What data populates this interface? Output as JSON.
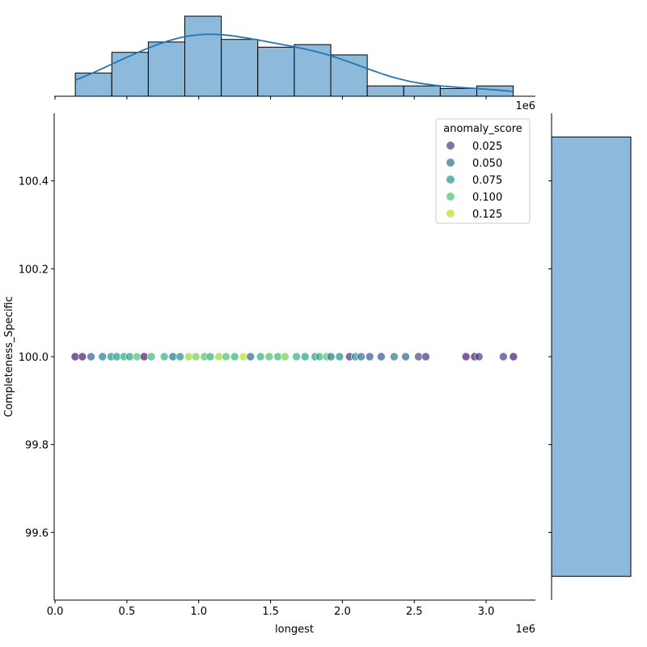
{
  "chart_data": {
    "type": "scatter",
    "xlabel": "longest",
    "ylabel": "Completeness_Specific",
    "x_offset_label": "1e6",
    "xlim": [
      -0.006,
      3.343
    ],
    "ylim": [
      99.446,
      100.554
    ],
    "x_ticks": [
      0.0,
      0.5,
      1.0,
      1.5,
      2.0,
      2.5,
      3.0
    ],
    "x_tick_labels": [
      "0.0",
      "0.5",
      "1.0",
      "1.5",
      "2.0",
      "2.5",
      "3.0"
    ],
    "y_ticks": [
      99.6,
      99.8,
      100.0,
      100.2,
      100.4
    ],
    "y_tick_labels": [
      "99.6",
      "99.8",
      "100.0",
      "100.2",
      "100.4"
    ],
    "hue": "anomaly_score",
    "colormap": "viridis",
    "hue_range": [
      0.0,
      0.14
    ],
    "legend": {
      "title": "anomaly_score",
      "position": "top-right",
      "entries": [
        "0.025",
        "0.050",
        "0.075",
        "0.100",
        "0.125"
      ],
      "values": [
        0.025,
        0.05,
        0.075,
        0.1,
        0.125
      ]
    },
    "points": {
      "x": [
        0.14,
        0.19,
        0.25,
        0.33,
        0.39,
        0.43,
        0.48,
        0.52,
        0.57,
        0.62,
        0.67,
        0.76,
        0.82,
        0.87,
        0.93,
        0.98,
        1.04,
        1.08,
        1.14,
        1.19,
        1.25,
        1.31,
        1.36,
        1.43,
        1.49,
        1.55,
        1.6,
        1.68,
        1.74,
        1.81,
        1.84,
        1.89,
        1.92,
        1.98,
        2.05,
        2.09,
        2.13,
        2.19,
        2.27,
        2.36,
        2.44,
        2.53,
        2.58,
        2.86,
        2.92,
        2.95,
        3.12,
        3.19
      ],
      "y": [
        100,
        100,
        100,
        100,
        100,
        100,
        100,
        100,
        100,
        100,
        100,
        100,
        100,
        100,
        100,
        100,
        100,
        100,
        100,
        100,
        100,
        100,
        100,
        100,
        100,
        100,
        100,
        100,
        100,
        100,
        100,
        100,
        100,
        100,
        100,
        100,
        100,
        100,
        100,
        100,
        100,
        100,
        100,
        100,
        100,
        100,
        100,
        100
      ],
      "anomaly_score": [
        0.01,
        0.01,
        0.045,
        0.06,
        0.07,
        0.075,
        0.085,
        0.08,
        0.1,
        0.01,
        0.095,
        0.09,
        0.05,
        0.07,
        0.12,
        0.11,
        0.1,
        0.09,
        0.12,
        0.1,
        0.09,
        0.125,
        0.045,
        0.09,
        0.1,
        0.095,
        0.11,
        0.09,
        0.08,
        0.075,
        0.09,
        0.1,
        0.06,
        0.07,
        0.02,
        0.07,
        0.05,
        0.04,
        0.035,
        0.06,
        0.045,
        0.03,
        0.02,
        0.01,
        0.01,
        0.025,
        0.025,
        0.01
      ]
    },
    "top_histogram": {
      "bin_edges": [
        0.141,
        0.395,
        0.649,
        0.903,
        1.157,
        1.411,
        1.665,
        1.919,
        2.173,
        2.427,
        2.681,
        2.935,
        3.189
      ],
      "counts": [
        9,
        17,
        21,
        31,
        22,
        19,
        20,
        16,
        4,
        4,
        3,
        4
      ],
      "kde": true
    },
    "right_histogram": {
      "bin_edges": [
        99.5,
        100.5
      ],
      "counts": [
        100
      ]
    },
    "bar_color": "#8db9da",
    "kde_color": "#1f77b4"
  }
}
